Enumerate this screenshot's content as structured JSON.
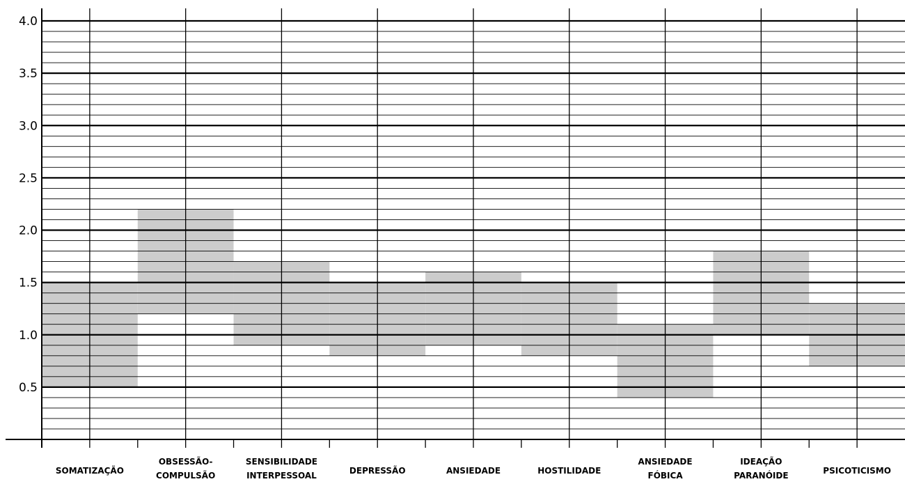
{
  "chart_data": {
    "type": "bar",
    "subtype": "floating-range",
    "title": "",
    "xlabel": "",
    "ylabel": "",
    "ylim": [
      0,
      4.0
    ],
    "yticks": [
      "4.0",
      "3.5",
      "3.0",
      "2.5",
      "2.0",
      "1.5",
      "1.0",
      "0.5"
    ],
    "minor_grid_step": 0.1,
    "grid": true,
    "bar_color": "#cccccc",
    "categories": [
      [
        "SOMATIZAÇÃO"
      ],
      [
        "OBSESSÃO-",
        "COMPULSÃO"
      ],
      [
        "SENSIBILIDADE",
        "INTERPESSOAL"
      ],
      [
        "DEPRESSÃO"
      ],
      [
        "ANSIEDADE"
      ],
      [
        "HOSTILIDADE"
      ],
      [
        "ANSIEDADE",
        "FÓBICA"
      ],
      [
        "IDEAÇÃO",
        "PARANÓIDE"
      ],
      [
        "PSICOTICISMO"
      ]
    ],
    "ranges": [
      [
        0.5,
        1.5
      ],
      [
        1.2,
        2.2
      ],
      [
        0.9,
        1.7
      ],
      [
        0.8,
        1.5
      ],
      [
        0.9,
        1.6
      ],
      [
        0.8,
        1.5
      ],
      [
        0.4,
        1.1
      ],
      [
        1.0,
        1.8
      ],
      [
        0.7,
        1.3
      ]
    ]
  }
}
